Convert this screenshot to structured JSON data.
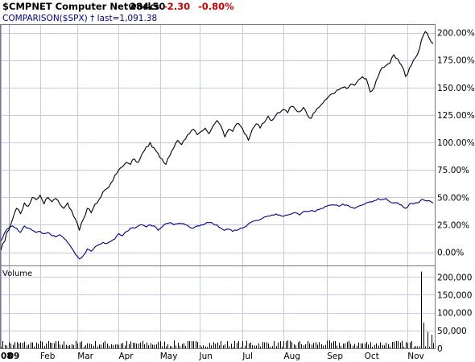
{
  "header": {
    "symbol_name": "$CMPNET Computer Networks",
    "last": "284.50",
    "change": "-2.30",
    "change_pct": "-0.80%",
    "comparison": "COMPARISON($SPX) † last=1,091.38"
  },
  "volume_label": "Volume",
  "colors": {
    "main_series": "#000000",
    "comparison_series": "#00008b",
    "negative_change": "#cc0000",
    "grid": "#c8c8e8",
    "volume_bars": "#000000"
  },
  "chart_data": {
    "type": "line",
    "title": "$CMPNET Computer Networks",
    "grid": true,
    "price_panel": {
      "y_scale": "percent_change",
      "ylim": [
        -12,
        207
      ],
      "y_ticks": [
        "0.00%",
        "25.00%",
        "50.00%",
        "75.00%",
        "100.00%",
        "125.00%",
        "150.00%",
        "175.00%",
        "200.00%"
      ],
      "y_tick_values": [
        0,
        25,
        50,
        75,
        100,
        125,
        150,
        175,
        200
      ]
    },
    "volume_panel": {
      "ylim": [
        0,
        230000
      ],
      "y_ticks": [
        "0",
        "50,000",
        "100,000",
        "150,000",
        "200,000"
      ],
      "y_tick_values": [
        0,
        50000,
        100000,
        150000,
        200000
      ]
    },
    "x_ticks": [
      {
        "label": "08",
        "bold": true
      },
      {
        "label": "09",
        "bold": true
      },
      {
        "label": "Feb",
        "bold": false
      },
      {
        "label": "Mar",
        "bold": false
      },
      {
        "label": "Apr",
        "bold": false
      },
      {
        "label": "May",
        "bold": false
      },
      {
        "label": "Jun",
        "bold": false
      },
      {
        "label": "Jul",
        "bold": false
      },
      {
        "label": "Aug",
        "bold": false
      },
      {
        "label": "Sep",
        "bold": false
      },
      {
        "label": "Oct",
        "bold": false
      },
      {
        "label": "Nov",
        "bold": false
      }
    ],
    "x_tick_index": [
      0,
      4,
      20,
      39,
      60,
      81,
      101,
      123,
      144,
      166,
      185,
      207
    ],
    "series": [
      {
        "name": "$CMPNET",
        "key_points": [
          [
            0,
            2
          ],
          [
            1,
            8
          ],
          [
            2,
            10
          ],
          [
            3,
            18
          ],
          [
            4,
            20
          ],
          [
            5,
            25
          ],
          [
            6,
            30
          ],
          [
            7,
            36
          ],
          [
            8,
            40
          ],
          [
            10,
            35
          ],
          [
            12,
            45
          ],
          [
            14,
            42
          ],
          [
            16,
            50
          ],
          [
            18,
            48
          ],
          [
            20,
            52
          ],
          [
            22,
            44
          ],
          [
            24,
            50
          ],
          [
            26,
            46
          ],
          [
            28,
            49
          ],
          [
            30,
            44
          ],
          [
            32,
            40
          ],
          [
            34,
            45
          ],
          [
            36,
            38
          ],
          [
            38,
            30
          ],
          [
            40,
            20
          ],
          [
            42,
            30
          ],
          [
            44,
            40
          ],
          [
            46,
            36
          ],
          [
            48,
            44
          ],
          [
            50,
            48
          ],
          [
            52,
            55
          ],
          [
            54,
            58
          ],
          [
            56,
            63
          ],
          [
            58,
            70
          ],
          [
            60,
            75
          ],
          [
            62,
            78
          ],
          [
            64,
            82
          ],
          [
            66,
            80
          ],
          [
            68,
            85
          ],
          [
            70,
            82
          ],
          [
            72,
            90
          ],
          [
            74,
            96
          ],
          [
            76,
            100
          ],
          [
            78,
            95
          ],
          [
            80,
            90
          ],
          [
            82,
            85
          ],
          [
            84,
            80
          ],
          [
            86,
            88
          ],
          [
            88,
            95
          ],
          [
            90,
            102
          ],
          [
            92,
            98
          ],
          [
            94,
            103
          ],
          [
            96,
            108
          ],
          [
            98,
            112
          ],
          [
            100,
            107
          ],
          [
            102,
            110
          ],
          [
            104,
            113
          ],
          [
            106,
            108
          ],
          [
            108,
            115
          ],
          [
            110,
            120
          ],
          [
            112,
            115
          ],
          [
            114,
            105
          ],
          [
            116,
            112
          ],
          [
            118,
            110
          ],
          [
            120,
            117
          ],
          [
            122,
            115
          ],
          [
            124,
            108
          ],
          [
            126,
            102
          ],
          [
            128,
            112
          ],
          [
            130,
            117
          ],
          [
            132,
            113
          ],
          [
            134,
            118
          ],
          [
            136,
            124
          ],
          [
            138,
            120
          ],
          [
            140,
            125
          ],
          [
            142,
            127
          ],
          [
            144,
            130
          ],
          [
            146,
            127
          ],
          [
            148,
            133
          ],
          [
            150,
            130
          ],
          [
            152,
            128
          ],
          [
            154,
            132
          ],
          [
            156,
            125
          ],
          [
            158,
            122
          ],
          [
            160,
            128
          ],
          [
            162,
            132
          ],
          [
            164,
            136
          ],
          [
            166,
            140
          ],
          [
            168,
            144
          ],
          [
            170,
            145
          ],
          [
            172,
            148
          ],
          [
            174,
            150
          ],
          [
            176,
            149
          ],
          [
            178,
            153
          ],
          [
            180,
            152
          ],
          [
            182,
            157
          ],
          [
            184,
            160
          ],
          [
            186,
            158
          ],
          [
            188,
            146
          ],
          [
            190,
            150
          ],
          [
            192,
            160
          ],
          [
            194,
            168
          ],
          [
            196,
            170
          ],
          [
            198,
            172
          ],
          [
            200,
            180
          ],
          [
            202,
            176
          ],
          [
            204,
            170
          ],
          [
            206,
            160
          ],
          [
            208,
            168
          ],
          [
            210,
            175
          ],
          [
            212,
            180
          ],
          [
            214,
            193
          ],
          [
            216,
            201
          ],
          [
            218,
            195
          ],
          [
            220,
            190
          ]
        ]
      },
      {
        "name": "COMPARISON($SPX)",
        "key_points": [
          [
            0,
            10
          ],
          [
            2,
            18
          ],
          [
            4,
            22
          ],
          [
            6,
            24
          ],
          [
            8,
            22
          ],
          [
            10,
            18
          ],
          [
            12,
            24
          ],
          [
            14,
            22
          ],
          [
            16,
            20
          ],
          [
            18,
            18
          ],
          [
            20,
            19
          ],
          [
            22,
            17
          ],
          [
            24,
            18
          ],
          [
            26,
            15
          ],
          [
            28,
            14
          ],
          [
            30,
            16
          ],
          [
            32,
            13
          ],
          [
            34,
            9
          ],
          [
            36,
            4
          ],
          [
            38,
            -2
          ],
          [
            40,
            -6
          ],
          [
            42,
            -3
          ],
          [
            44,
            3
          ],
          [
            46,
            1
          ],
          [
            48,
            5
          ],
          [
            50,
            7
          ],
          [
            52,
            9
          ],
          [
            54,
            8
          ],
          [
            56,
            10
          ],
          [
            58,
            12
          ],
          [
            60,
            17
          ],
          [
            62,
            15
          ],
          [
            64,
            19
          ],
          [
            66,
            22
          ],
          [
            68,
            22
          ],
          [
            70,
            24
          ],
          [
            72,
            25
          ],
          [
            74,
            23
          ],
          [
            76,
            25
          ],
          [
            78,
            24
          ],
          [
            80,
            20
          ],
          [
            82,
            23
          ],
          [
            84,
            26
          ],
          [
            86,
            27
          ],
          [
            88,
            25
          ],
          [
            90,
            26
          ],
          [
            92,
            26
          ],
          [
            94,
            25
          ],
          [
            96,
            23
          ],
          [
            98,
            22
          ],
          [
            100,
            24
          ],
          [
            102,
            25
          ],
          [
            104,
            26
          ],
          [
            106,
            27
          ],
          [
            108,
            26
          ],
          [
            110,
            25
          ],
          [
            112,
            22
          ],
          [
            114,
            20
          ],
          [
            116,
            21
          ],
          [
            118,
            19
          ],
          [
            120,
            20
          ],
          [
            122,
            22
          ],
          [
            124,
            23
          ],
          [
            126,
            26
          ],
          [
            128,
            28
          ],
          [
            130,
            29
          ],
          [
            132,
            30
          ],
          [
            134,
            32
          ],
          [
            136,
            33
          ],
          [
            138,
            34
          ],
          [
            140,
            35
          ],
          [
            142,
            34
          ],
          [
            144,
            33
          ],
          [
            146,
            34
          ],
          [
            148,
            35
          ],
          [
            150,
            36
          ],
          [
            152,
            34
          ],
          [
            154,
            37
          ],
          [
            156,
            37
          ],
          [
            158,
            38
          ],
          [
            160,
            37
          ],
          [
            162,
            39
          ],
          [
            164,
            40
          ],
          [
            166,
            42
          ],
          [
            168,
            43
          ],
          [
            170,
            43
          ],
          [
            172,
            42
          ],
          [
            174,
            44
          ],
          [
            176,
            43
          ],
          [
            178,
            41
          ],
          [
            180,
            40
          ],
          [
            182,
            42
          ],
          [
            184,
            43
          ],
          [
            186,
            45
          ],
          [
            188,
            46
          ],
          [
            190,
            47
          ],
          [
            192,
            49
          ],
          [
            194,
            48
          ],
          [
            196,
            49
          ],
          [
            198,
            46
          ],
          [
            200,
            45
          ],
          [
            202,
            45
          ],
          [
            204,
            43
          ],
          [
            206,
            40
          ],
          [
            208,
            44
          ],
          [
            210,
            44
          ],
          [
            212,
            45
          ],
          [
            214,
            48
          ],
          [
            216,
            47
          ],
          [
            218,
            47
          ],
          [
            220,
            45
          ]
        ]
      }
    ],
    "volume_spikes": [
      {
        "index": 214,
        "value": 215000
      },
      {
        "index": 215,
        "value": 72000
      },
      {
        "index": 217,
        "value": 46000
      },
      {
        "index": 219,
        "value": 38000
      }
    ],
    "volume_baseline_range": [
      4000,
      22000
    ]
  }
}
